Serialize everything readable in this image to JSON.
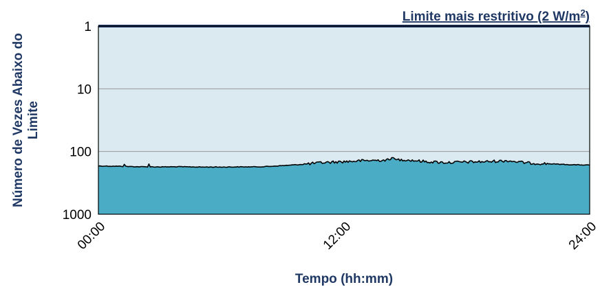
{
  "chart_data": {
    "type": "area",
    "title": "",
    "xlabel": "Tempo (hh:mm)",
    "ylabel_lines": [
      "Número de Vezes Abaixo do",
      "Limite"
    ],
    "y_scale": "log",
    "y_reversed": true,
    "ylim": [
      1,
      1000
    ],
    "y_ticks": [
      {
        "value": 1,
        "label": "1"
      },
      {
        "value": 10,
        "label": "10"
      },
      {
        "value": 100,
        "label": "100"
      },
      {
        "value": 1000,
        "label": "1000"
      }
    ],
    "x_ticks": [
      {
        "value": 0,
        "label": "00:00"
      },
      {
        "value": 12,
        "label": "12:00"
      },
      {
        "value": 24,
        "label": "24:00"
      }
    ],
    "xlim": [
      0,
      24
    ],
    "grid": true,
    "annotation": {
      "text": "Limite mais restritivo (2 W/m",
      "superscript": "2",
      "suffix": ")",
      "y_value": 1
    },
    "series": [
      {
        "x": [
          0,
          1,
          2,
          3,
          4,
          5,
          6,
          7,
          8,
          9,
          10,
          11,
          12,
          13,
          14,
          15,
          16,
          17,
          18,
          19,
          20,
          21,
          22,
          23,
          24
        ],
        "values": [
          170,
          172,
          175,
          176,
          175,
          177,
          177,
          176,
          175,
          168,
          160,
          150,
          145,
          140,
          137,
          135,
          145,
          150,
          147,
          145,
          140,
          153,
          157,
          162,
          165
        ]
      }
    ],
    "colors": {
      "plot_background": "#daeaf0",
      "area_fill": "#4bacc6",
      "series_line": "#000000",
      "limit_line": "#1f3864",
      "axis_text": "#1f3864",
      "grid": "#9a9a9a"
    }
  }
}
